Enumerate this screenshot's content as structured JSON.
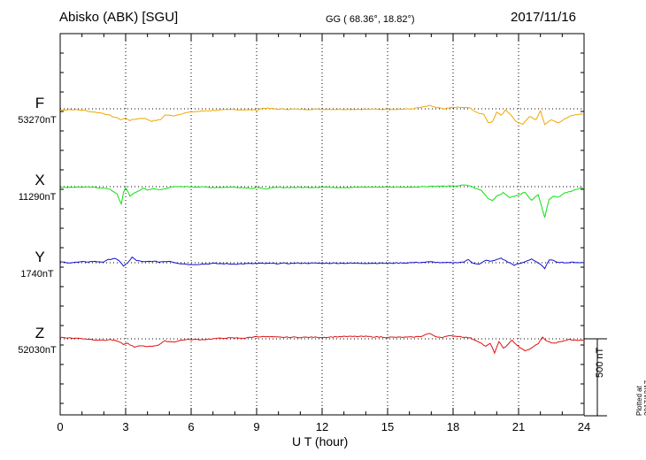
{
  "header": {
    "station": "Abisko (ABK)  [SGU]",
    "coords": "GG ( 68.36°,  18.82°)",
    "date": "2017/11/16"
  },
  "plotted_note": "Plotted at 2017/12/17 01:34 UT",
  "colors": {
    "F": "#f0a800",
    "X": "#10e010",
    "Y": "#1010d0",
    "Z": "#e01010"
  },
  "chart_data": {
    "type": "line",
    "xlabel": "U T (hour)",
    "xlim": [
      0,
      24
    ],
    "x_ticks": [
      "0",
      "3",
      "6",
      "9",
      "12",
      "15",
      "18",
      "21",
      "24"
    ],
    "scale_bar": "500 nT",
    "components": [
      {
        "name": "F",
        "baseline": "53270nT",
        "color": "#f0a800",
        "points": [
          [
            0,
            -8
          ],
          [
            0.5,
            -5
          ],
          [
            1,
            -8
          ],
          [
            1.5,
            -20
          ],
          [
            2,
            -30
          ],
          [
            2.5,
            -55
          ],
          [
            2.8,
            -70
          ],
          [
            3,
            -60
          ],
          [
            3.2,
            -75
          ],
          [
            3.5,
            -65
          ],
          [
            3.8,
            -60
          ],
          [
            4.2,
            -80
          ],
          [
            4.6,
            -70
          ],
          [
            4.8,
            -40
          ],
          [
            5.2,
            -45
          ],
          [
            5.6,
            -30
          ],
          [
            6,
            -20
          ],
          [
            7,
            -10
          ],
          [
            8,
            -5
          ],
          [
            9,
            -8
          ],
          [
            9.3,
            5
          ],
          [
            10,
            -2
          ],
          [
            11,
            -3
          ],
          [
            12,
            -3
          ],
          [
            13,
            -3
          ],
          [
            14,
            -3
          ],
          [
            15,
            -3
          ],
          [
            16,
            -2
          ],
          [
            16.6,
            10
          ],
          [
            16.9,
            20
          ],
          [
            17.2,
            10
          ],
          [
            17.6,
            -2
          ],
          [
            18,
            10
          ],
          [
            18.5,
            8
          ],
          [
            18.8,
            5
          ],
          [
            19,
            -20
          ],
          [
            19.4,
            -35
          ],
          [
            19.6,
            -90
          ],
          [
            19.8,
            -85
          ],
          [
            20,
            -20
          ],
          [
            20.2,
            -40
          ],
          [
            20.4,
            -10
          ],
          [
            20.6,
            -30
          ],
          [
            20.9,
            -85
          ],
          [
            21.2,
            -100
          ],
          [
            21.5,
            -50
          ],
          [
            21.8,
            -70
          ],
          [
            22,
            -15
          ],
          [
            22.2,
            -100
          ],
          [
            22.5,
            -70
          ],
          [
            22.8,
            -90
          ],
          [
            23.2,
            -60
          ],
          [
            23.5,
            -40
          ],
          [
            24,
            -30
          ]
        ]
      },
      {
        "name": "X",
        "baseline": "11290nT",
        "color": "#10e010",
        "points": [
          [
            0,
            -5
          ],
          [
            0.5,
            -3
          ],
          [
            1,
            -3
          ],
          [
            1.5,
            -5
          ],
          [
            2,
            -8
          ],
          [
            2.3,
            -20
          ],
          [
            2.6,
            -45
          ],
          [
            2.8,
            -115
          ],
          [
            2.9,
            -40
          ],
          [
            3,
            -5
          ],
          [
            3.2,
            -60
          ],
          [
            3.5,
            -35
          ],
          [
            3.8,
            -10
          ],
          [
            4,
            -20
          ],
          [
            4.3,
            -15
          ],
          [
            4.6,
            -20
          ],
          [
            5,
            -5
          ],
          [
            5.5,
            0
          ],
          [
            6,
            0
          ],
          [
            7,
            -5
          ],
          [
            8,
            -3
          ],
          [
            8.8,
            -10
          ],
          [
            9,
            -5
          ],
          [
            9.3,
            -15
          ],
          [
            10,
            -5
          ],
          [
            11,
            -5
          ],
          [
            12,
            -3
          ],
          [
            13,
            -5
          ],
          [
            14,
            -3
          ],
          [
            15,
            -3
          ],
          [
            16,
            -3
          ],
          [
            16.5,
            0
          ],
          [
            17,
            3
          ],
          [
            17.5,
            3
          ],
          [
            18,
            3
          ],
          [
            18.5,
            10
          ],
          [
            18.8,
            5
          ],
          [
            19,
            -10
          ],
          [
            19.3,
            -25
          ],
          [
            19.6,
            -75
          ],
          [
            19.8,
            -90
          ],
          [
            20,
            -60
          ],
          [
            20.3,
            -40
          ],
          [
            20.6,
            -70
          ],
          [
            21,
            -55
          ],
          [
            21.3,
            -35
          ],
          [
            21.6,
            -90
          ],
          [
            21.9,
            -50
          ],
          [
            22.2,
            -200
          ],
          [
            22.4,
            -80
          ],
          [
            22.6,
            -60
          ],
          [
            22.8,
            -70
          ],
          [
            23.1,
            -40
          ],
          [
            23.5,
            -25
          ],
          [
            24,
            -5
          ]
        ]
      },
      {
        "name": "Y",
        "baseline": "1740nT",
        "color": "#1010d0",
        "points": [
          [
            0,
            5
          ],
          [
            0.5,
            0
          ],
          [
            1,
            5
          ],
          [
            1.5,
            8
          ],
          [
            2,
            5
          ],
          [
            2.2,
            20
          ],
          [
            2.5,
            30
          ],
          [
            2.7,
            10
          ],
          [
            2.9,
            -20
          ],
          [
            3.1,
            0
          ],
          [
            3.3,
            35
          ],
          [
            3.5,
            15
          ],
          [
            3.8,
            5
          ],
          [
            4.2,
            10
          ],
          [
            4.5,
            5
          ],
          [
            5,
            10
          ],
          [
            5.5,
            -5
          ],
          [
            6,
            -12
          ],
          [
            7,
            -5
          ],
          [
            8,
            -8
          ],
          [
            9,
            -5
          ],
          [
            10,
            -5
          ],
          [
            11,
            -3
          ],
          [
            12,
            -3
          ],
          [
            13,
            -3
          ],
          [
            14,
            -3
          ],
          [
            15,
            -3
          ],
          [
            16,
            0
          ],
          [
            17,
            5
          ],
          [
            17.5,
            0
          ],
          [
            18,
            0
          ],
          [
            18.5,
            5
          ],
          [
            18.7,
            20
          ],
          [
            18.9,
            0
          ],
          [
            19.2,
            -10
          ],
          [
            19.5,
            15
          ],
          [
            19.8,
            10
          ],
          [
            20.2,
            30
          ],
          [
            20.5,
            5
          ],
          [
            20.8,
            -15
          ],
          [
            21.2,
            0
          ],
          [
            21.6,
            25
          ],
          [
            22,
            -10
          ],
          [
            22.2,
            -40
          ],
          [
            22.4,
            20
          ],
          [
            22.8,
            5
          ],
          [
            23.2,
            0
          ],
          [
            23.6,
            3
          ],
          [
            24,
            0
          ]
        ]
      },
      {
        "name": "Z",
        "baseline": "52030nT",
        "color": "#e01010",
        "points": [
          [
            0,
            10
          ],
          [
            0.5,
            5
          ],
          [
            1,
            2
          ],
          [
            1.5,
            -5
          ],
          [
            2,
            -10
          ],
          [
            2.3,
            -5
          ],
          [
            2.6,
            -15
          ],
          [
            2.9,
            -35
          ],
          [
            3.1,
            -30
          ],
          [
            3.4,
            -55
          ],
          [
            3.7,
            -45
          ],
          [
            4.1,
            -50
          ],
          [
            4.5,
            -40
          ],
          [
            4.8,
            -15
          ],
          [
            5.2,
            -20
          ],
          [
            5.7,
            -5
          ],
          [
            6.5,
            -5
          ],
          [
            7.5,
            5
          ],
          [
            8.5,
            5
          ],
          [
            9,
            15
          ],
          [
            10,
            10
          ],
          [
            11,
            10
          ],
          [
            12,
            10
          ],
          [
            13,
            15
          ],
          [
            14,
            15
          ],
          [
            15,
            10
          ],
          [
            16,
            10
          ],
          [
            16.5,
            15
          ],
          [
            16.9,
            35
          ],
          [
            17.2,
            15
          ],
          [
            17.5,
            10
          ],
          [
            17.9,
            20
          ],
          [
            18.3,
            15
          ],
          [
            18.8,
            5
          ],
          [
            19.2,
            -20
          ],
          [
            19.5,
            -50
          ],
          [
            19.7,
            -30
          ],
          [
            19.9,
            -90
          ],
          [
            20.1,
            -20
          ],
          [
            20.3,
            -60
          ],
          [
            20.5,
            -40
          ],
          [
            20.7,
            -10
          ],
          [
            21,
            -50
          ],
          [
            21.3,
            -80
          ],
          [
            21.6,
            -60
          ],
          [
            21.9,
            -30
          ],
          [
            22.1,
            10
          ],
          [
            22.3,
            -15
          ],
          [
            22.6,
            -30
          ],
          [
            22.9,
            -20
          ],
          [
            23.3,
            -5
          ],
          [
            23.7,
            -10
          ],
          [
            24,
            -5
          ]
        ]
      }
    ]
  }
}
